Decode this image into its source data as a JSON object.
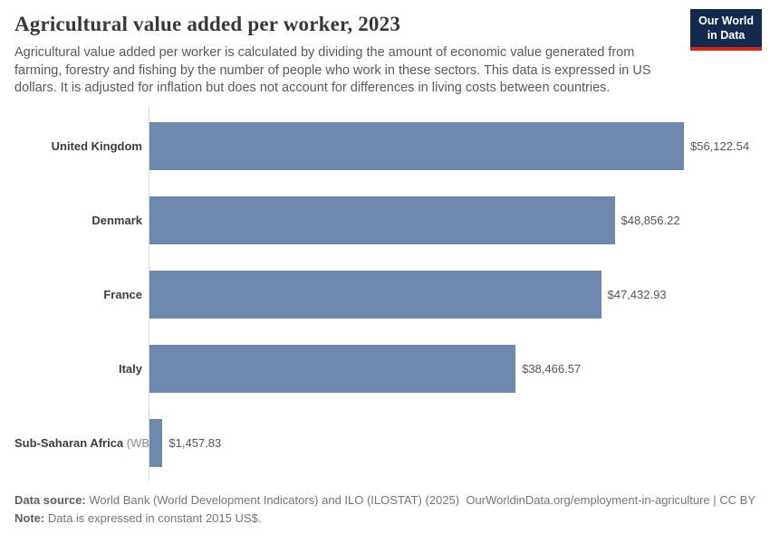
{
  "header": {
    "title": "Agricultural value added per worker, 2023",
    "subtitle": "Agricultural value added per worker is calculated by dividing the amount of economic value generated from farming, forestry and fishing by the number of people who work in these sectors. This data is expressed in US dollars. It is adjusted for inflation but does not account for differences in living costs between countries.",
    "logo": {
      "line1": "Our World",
      "line2": "in Data",
      "bg_color": "#132a4d",
      "accent_color": "#d02717"
    }
  },
  "chart_data": {
    "type": "bar",
    "orientation": "horizontal",
    "title": "Agricultural value added per worker, 2023",
    "unit": "constant 2015 US$",
    "categories": [
      "United Kingdom",
      "Denmark",
      "France",
      "Italy",
      "Sub-Saharan Africa (WB)"
    ],
    "values": [
      56122.54,
      48856.22,
      47432.93,
      38466.57,
      1457.83
    ],
    "entities": [
      {
        "label": "United Kingdom",
        "suffix": "",
        "value": 56122.54,
        "value_label": "$56,122.54"
      },
      {
        "label": "Denmark",
        "suffix": "",
        "value": 48856.22,
        "value_label": "$48,856.22"
      },
      {
        "label": "France",
        "suffix": "",
        "value": 47432.93,
        "value_label": "$47,432.93"
      },
      {
        "label": "Italy",
        "suffix": "",
        "value": 38466.57,
        "value_label": "$38,466.57"
      },
      {
        "label": "Sub-Saharan Africa",
        "suffix": "(WB)",
        "value": 1457.83,
        "value_label": "$1,457.83"
      }
    ],
    "xlim": [
      0,
      56122.54
    ],
    "bar_color": "#6e89ad",
    "grid": false,
    "legend": "none",
    "value_labels": "outside-end"
  },
  "footer": {
    "source_label": "Data source:",
    "source_text": "World Bank (World Development Indicators) and ILO (ILOSTAT) (2025)",
    "link_text": "OurWorldinData.org/employment-in-agriculture | CC BY",
    "note_label": "Note:",
    "note_text": "Data is expressed in constant 2015 US$."
  }
}
